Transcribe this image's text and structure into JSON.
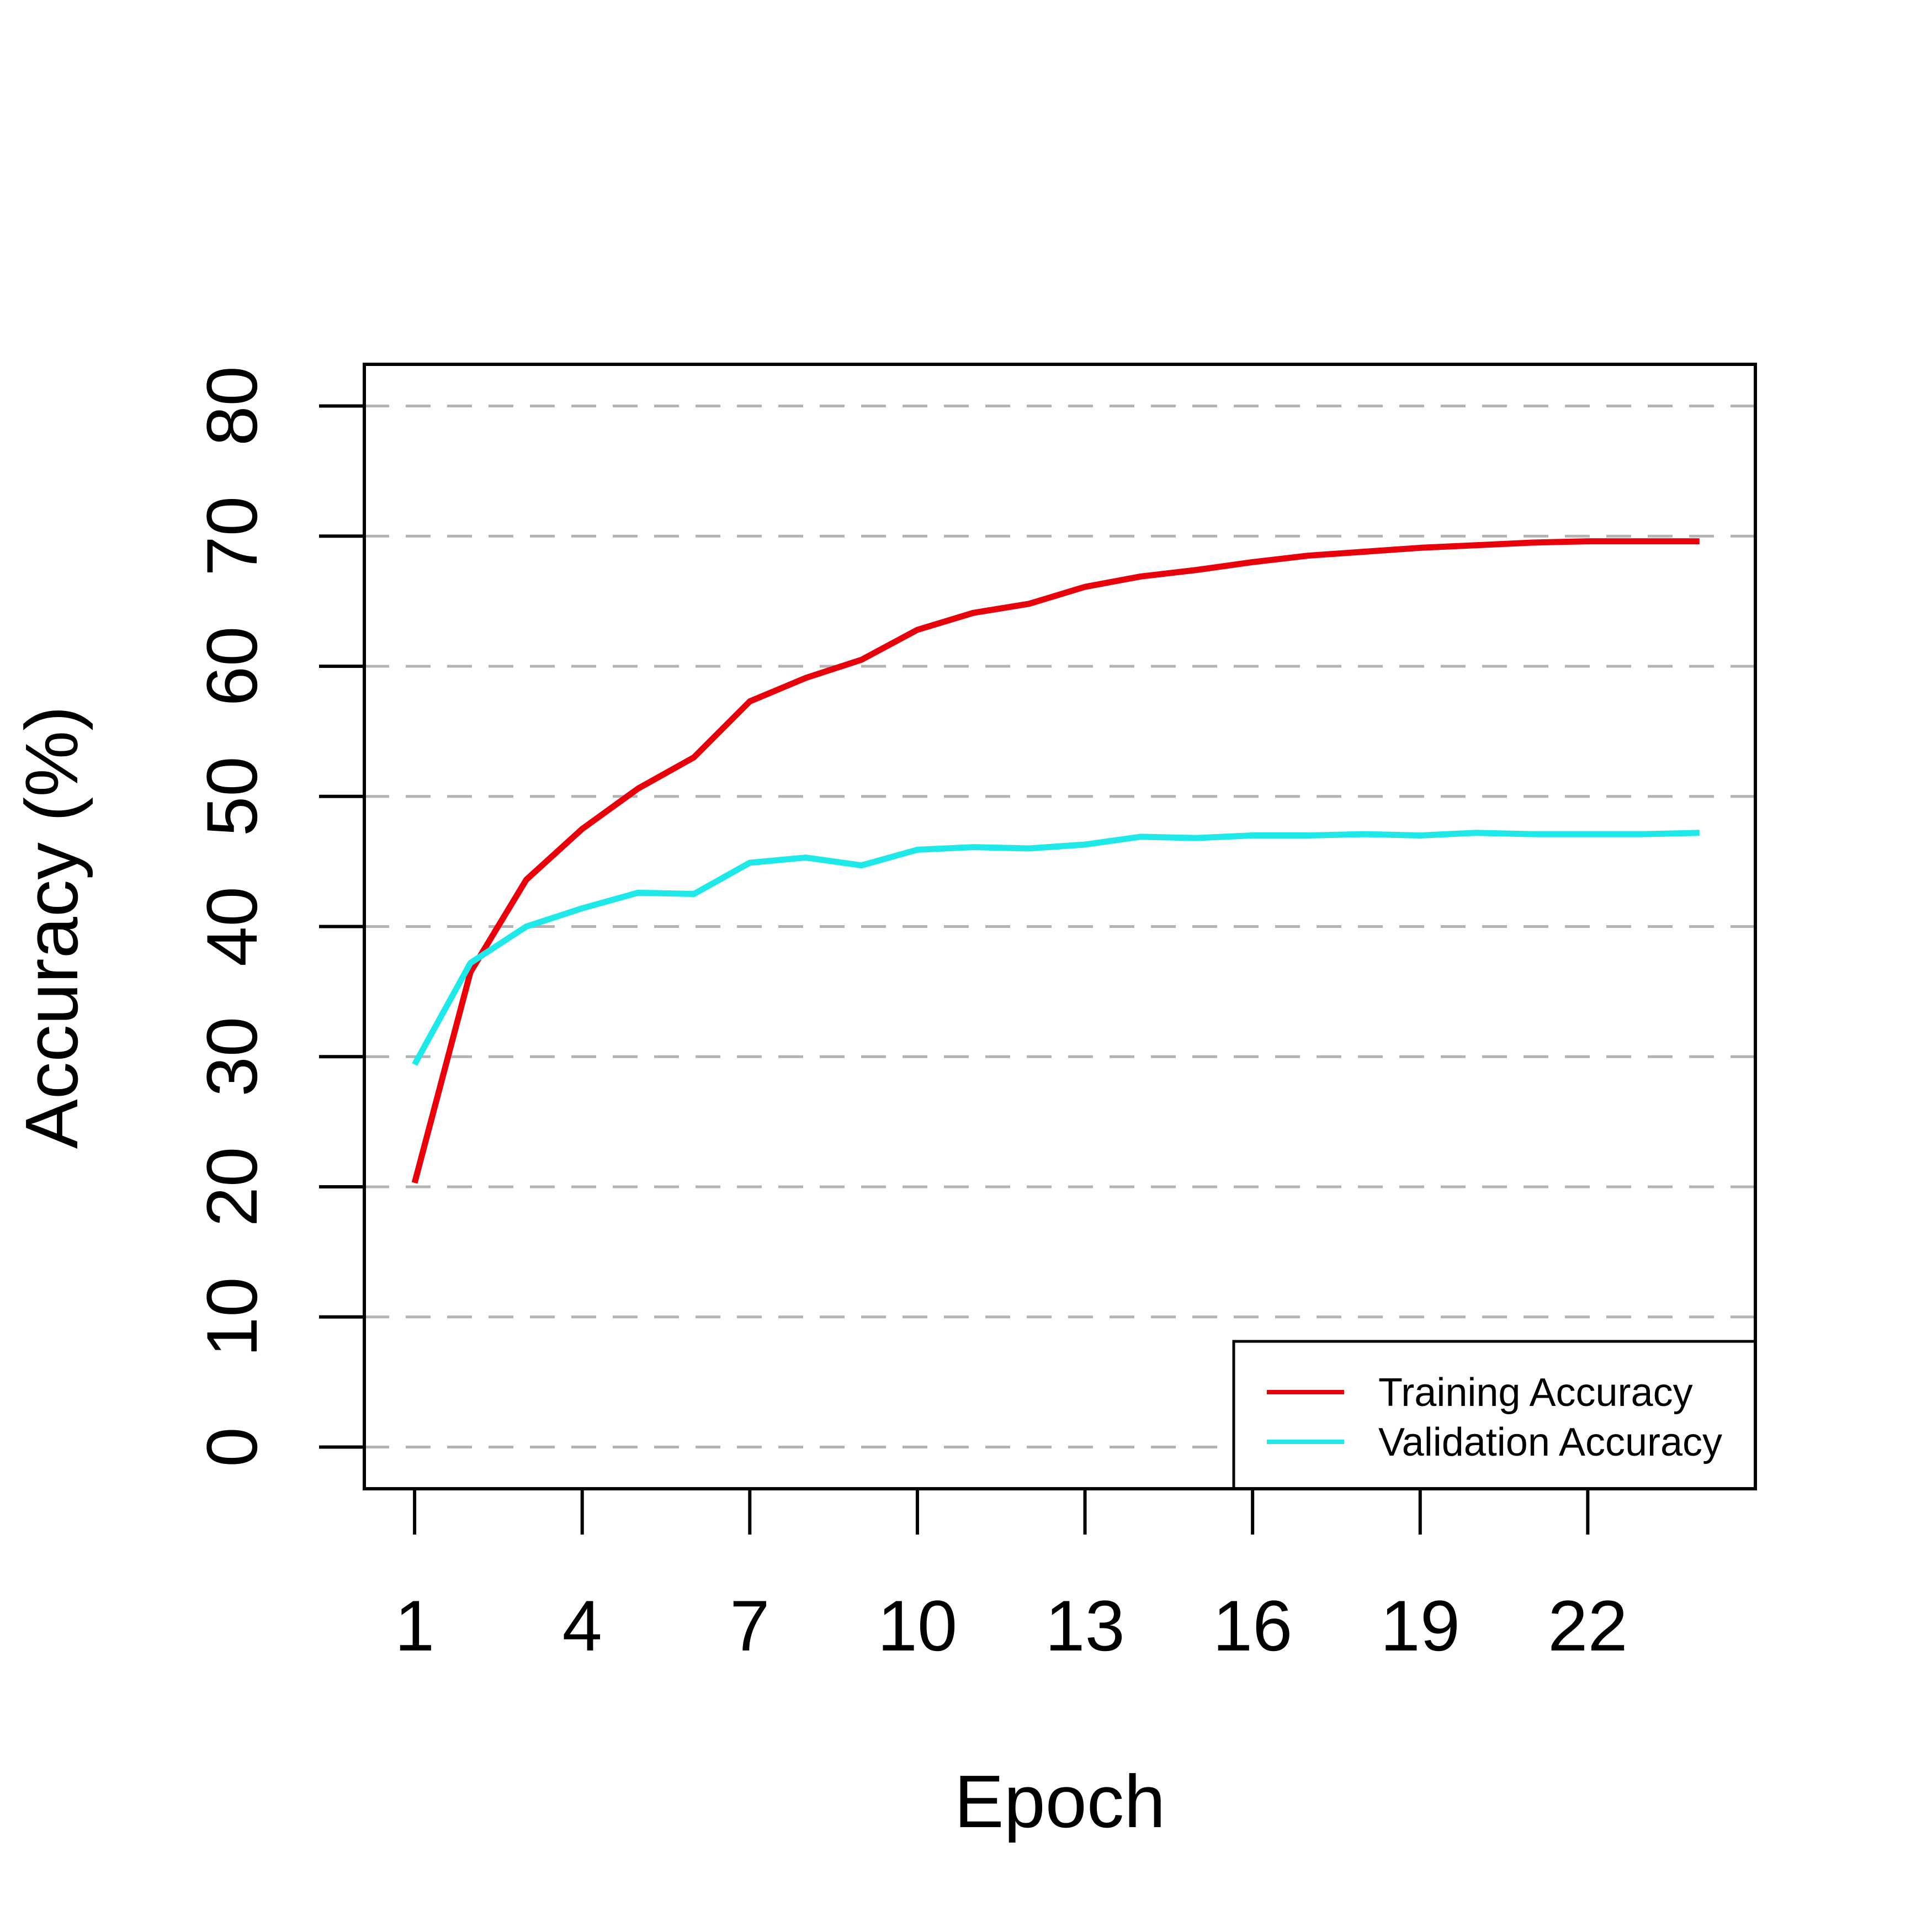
{
  "chart_data": {
    "type": "line",
    "xlabel": "Epoch",
    "ylabel": "Accuracy (%)",
    "x": [
      1,
      2,
      3,
      4,
      5,
      6,
      7,
      8,
      9,
      10,
      11,
      12,
      13,
      14,
      15,
      16,
      17,
      18,
      19,
      20,
      21,
      22,
      23,
      24
    ],
    "xticks": [
      1,
      4,
      7,
      10,
      13,
      16,
      19,
      22
    ],
    "yticks": [
      0,
      10,
      20,
      30,
      40,
      50,
      60,
      70,
      80
    ],
    "xlim": [
      0.1,
      25
    ],
    "ylim": [
      -3.2,
      83.2
    ],
    "grid": "horizontal dashed",
    "legend_position": "bottom-right",
    "series": [
      {
        "name": "Training Accuracy",
        "color": "#e8000b",
        "values": [
          20.3,
          36.5,
          43.6,
          47.5,
          50.6,
          53.0,
          57.3,
          59.1,
          60.5,
          62.8,
          64.1,
          64.8,
          66.1,
          66.9,
          67.4,
          68.0,
          68.5,
          68.8,
          69.1,
          69.3,
          69.5,
          69.6,
          69.6,
          69.6
        ]
      },
      {
        "name": "Validation Accuracy",
        "color": "#1ee8e8",
        "values": [
          29.4,
          37.2,
          40.0,
          41.4,
          42.6,
          42.5,
          44.9,
          45.3,
          44.7,
          45.9,
          46.1,
          46.0,
          46.3,
          46.9,
          46.8,
          47.0,
          47.0,
          47.1,
          47.0,
          47.2,
          47.1,
          47.1,
          47.1,
          47.2
        ]
      }
    ]
  }
}
